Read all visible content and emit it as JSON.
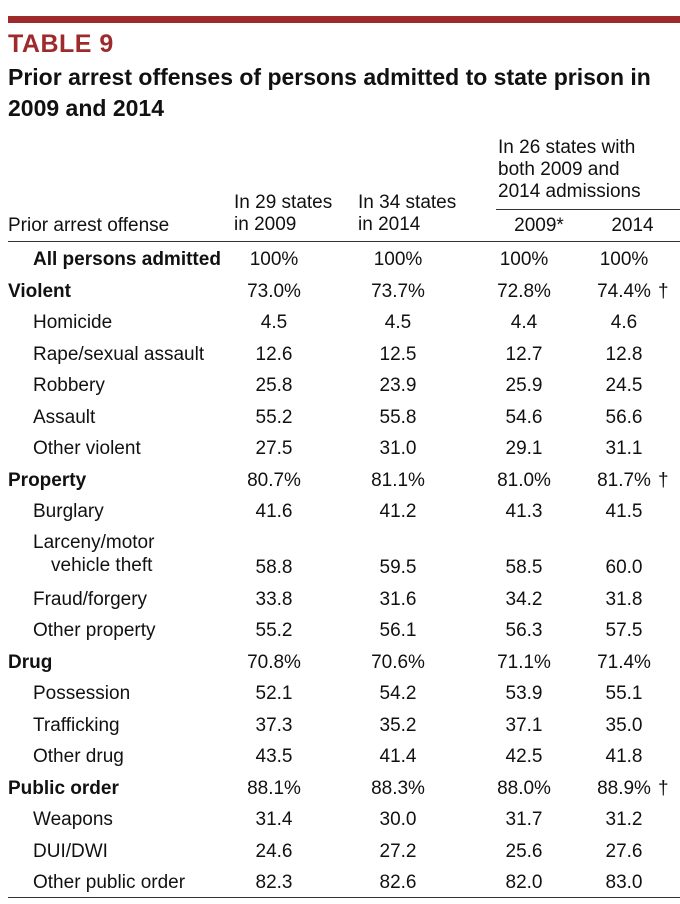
{
  "table_number": "TABLE 9",
  "title": "Prior arrest offenses of persons admitted to state prison in 2009 and 2014",
  "header": {
    "offense": "Prior arrest offense",
    "col_29_states_line1": "In 29 states",
    "col_29_states_line2": "in 2009",
    "col_34_states_line1": "In 34 states",
    "col_34_states_line2": "in 2014",
    "col_26_states_line1": "In 26 states with",
    "col_26_states_line2": "both 2009 and",
    "col_26_states_line3": "2014 admissions",
    "col_26_2009": "2009*",
    "col_26_2014": "2014"
  },
  "rows": [
    {
      "label": "All persons admitted",
      "v1": "100%",
      "v2": "100%",
      "v3": "100%",
      "v4": "100%",
      "mark": ""
    },
    {
      "label": "Violent",
      "v1": "73.0%",
      "v2": "73.7%",
      "v3": "72.8%",
      "v4": "74.4%",
      "mark": "†"
    },
    {
      "label": "Homicide",
      "v1": "4.5",
      "v2": "4.5",
      "v3": "4.4",
      "v4": "4.6",
      "mark": ""
    },
    {
      "label": "Rape/sexual assault",
      "v1": "12.6",
      "v2": "12.5",
      "v3": "12.7",
      "v4": "12.8",
      "mark": ""
    },
    {
      "label": "Robbery",
      "v1": "25.8",
      "v2": "23.9",
      "v3": "25.9",
      "v4": "24.5",
      "mark": ""
    },
    {
      "label": "Assault",
      "v1": "55.2",
      "v2": "55.8",
      "v3": "54.6",
      "v4": "56.6",
      "mark": ""
    },
    {
      "label": "Other violent",
      "v1": "27.5",
      "v2": "31.0",
      "v3": "29.1",
      "v4": "31.1",
      "mark": ""
    },
    {
      "label": "Property",
      "v1": "80.7%",
      "v2": "81.1%",
      "v3": "81.0%",
      "v4": "81.7%",
      "mark": "†"
    },
    {
      "label": "Burglary",
      "v1": "41.6",
      "v2": "41.2",
      "v3": "41.3",
      "v4": "41.5",
      "mark": ""
    },
    {
      "label": "Larceny/motor",
      "label2": "vehicle theft",
      "v1": "58.8",
      "v2": "59.5",
      "v3": "58.5",
      "v4": "60.0",
      "mark": ""
    },
    {
      "label": "Fraud/forgery",
      "v1": "33.8",
      "v2": "31.6",
      "v3": "34.2",
      "v4": "31.8",
      "mark": ""
    },
    {
      "label": "Other property",
      "v1": "55.2",
      "v2": "56.1",
      "v3": "56.3",
      "v4": "57.5",
      "mark": ""
    },
    {
      "label": "Drug",
      "v1": "70.8%",
      "v2": "70.6%",
      "v3": "71.1%",
      "v4": "71.4%",
      "mark": ""
    },
    {
      "label": "Possession",
      "v1": "52.1",
      "v2": "54.2",
      "v3": "53.9",
      "v4": "55.1",
      "mark": ""
    },
    {
      "label": "Trafficking",
      "v1": "37.3",
      "v2": "35.2",
      "v3": "37.1",
      "v4": "35.0",
      "mark": ""
    },
    {
      "label": "Other drug",
      "v1": "43.5",
      "v2": "41.4",
      "v3": "42.5",
      "v4": "41.8",
      "mark": ""
    },
    {
      "label": "Public order",
      "v1": "88.1%",
      "v2": "88.3%",
      "v3": "88.0%",
      "v4": "88.9%",
      "mark": "†"
    },
    {
      "label": "Weapons",
      "v1": "31.4",
      "v2": "30.0",
      "v3": "31.7",
      "v4": "31.2",
      "mark": ""
    },
    {
      "label": "DUI/DWI",
      "v1": "24.6",
      "v2": "27.2",
      "v3": "25.6",
      "v4": "27.6",
      "mark": ""
    },
    {
      "label": "Other public order",
      "v1": "82.3",
      "v2": "82.6",
      "v3": "82.0",
      "v4": "83.0",
      "mark": ""
    }
  ]
}
